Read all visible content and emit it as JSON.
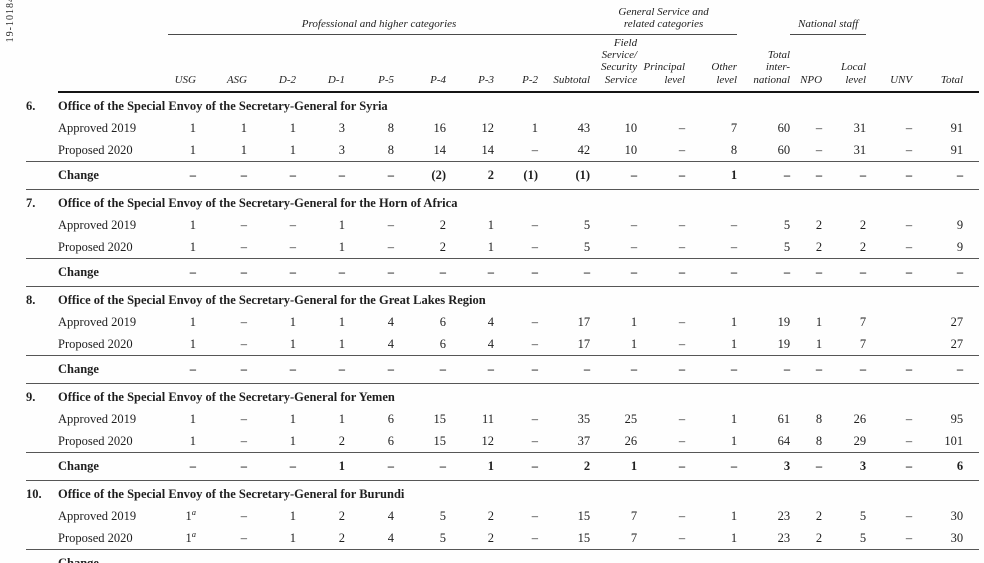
{
  "page": {
    "document_number": "19-10184"
  },
  "table": {
    "group_cells": [
      {
        "label": "",
        "span": 2,
        "ruled": false
      },
      {
        "label": "Professional and higher categories",
        "span": 9,
        "ruled": true
      },
      {
        "label": "General Service and\nrelated categories",
        "span": 3,
        "ruled": true
      },
      {
        "label": "",
        "span": 1,
        "ruled": false
      },
      {
        "label": "National staff",
        "span": 2,
        "ruled": true
      },
      {
        "label": "",
        "span": 2,
        "ruled": false
      }
    ],
    "columns": [
      {
        "id": "usg",
        "lines": [
          "USG"
        ]
      },
      {
        "id": "asg",
        "lines": [
          "ASG"
        ]
      },
      {
        "id": "d-2",
        "lines": [
          "D-2"
        ]
      },
      {
        "id": "d-1",
        "lines": [
          "D-1"
        ]
      },
      {
        "id": "p-5",
        "lines": [
          "P-5"
        ]
      },
      {
        "id": "p-4",
        "lines": [
          "P-4"
        ]
      },
      {
        "id": "p-3",
        "lines": [
          "P-3"
        ]
      },
      {
        "id": "p-2",
        "lines": [
          "P-2"
        ]
      },
      {
        "id": "subtotal",
        "lines": [
          "Subtotal"
        ]
      },
      {
        "id": "field-service-security-service",
        "lines": [
          "Field",
          "Service/",
          "Security",
          "Service"
        ]
      },
      {
        "id": "principal-level",
        "lines": [
          "Principal",
          "level"
        ]
      },
      {
        "id": "other-level",
        "lines": [
          "Other",
          "level"
        ]
      },
      {
        "id": "total-international",
        "lines": [
          "Total",
          "inter-",
          "national"
        ]
      },
      {
        "id": "npo",
        "lines": [
          "NPO"
        ]
      },
      {
        "id": "local-level",
        "lines": [
          "Local",
          "level"
        ]
      },
      {
        "id": "unv",
        "lines": [
          "UNV"
        ]
      },
      {
        "id": "total",
        "lines": [
          "Total"
        ]
      }
    ],
    "sections": [
      {
        "number": "6.",
        "title": "Office of the Special Envoy of the Secretary-General for Syria",
        "rows": [
          {
            "label": "Approved 2019",
            "values": [
              "1",
              "1",
              "1",
              "3",
              "8",
              "16",
              "12",
              "1",
              "43",
              "10",
              "–",
              "7",
              "60",
              "–",
              "31",
              "–",
              "91"
            ]
          },
          {
            "label": "Proposed 2020",
            "values": [
              "1",
              "1",
              "1",
              "3",
              "8",
              "14",
              "14",
              "–",
              "42",
              "10",
              "–",
              "8",
              "60",
              "–",
              "31",
              "–",
              "91"
            ]
          },
          {
            "label": "Change",
            "values": [
              "–",
              "–",
              "–",
              "–",
              "–",
              "(2)",
              "2",
              "(1)",
              "(1)",
              "–",
              "–",
              "1",
              "–",
              "–",
              "–",
              "–",
              "–"
            ]
          }
        ]
      },
      {
        "number": "7.",
        "title": "Office of the Special Envoy of the Secretary-General for the Horn of Africa",
        "rows": [
          {
            "label": "Approved 2019",
            "values": [
              "1",
              "–",
              "–",
              "1",
              "–",
              "2",
              "1",
              "–",
              "5",
              "–",
              "–",
              "–",
              "5",
              "2",
              "2",
              "–",
              "9"
            ]
          },
          {
            "label": "Proposed 2020",
            "values": [
              "1",
              "–",
              "–",
              "1",
              "–",
              "2",
              "1",
              "–",
              "5",
              "–",
              "–",
              "–",
              "5",
              "2",
              "2",
              "–",
              "9"
            ]
          },
          {
            "label": "Change",
            "values": [
              "–",
              "–",
              "–",
              "–",
              "–",
              "–",
              "–",
              "–",
              "–",
              "–",
              "–",
              "–",
              "–",
              "–",
              "–",
              "–",
              "–"
            ]
          }
        ]
      },
      {
        "number": "8.",
        "title": "Office of the Special Envoy of the Secretary-General for the Great Lakes Region",
        "rows": [
          {
            "label": "Approved 2019",
            "values": [
              "1",
              "–",
              "1",
              "1",
              "4",
              "6",
              "4",
              "–",
              "17",
              "1",
              "–",
              "1",
              "19",
              "1",
              "7",
              "",
              "27"
            ]
          },
          {
            "label": "Proposed 2020",
            "values": [
              "1",
              "–",
              "1",
              "1",
              "4",
              "6",
              "4",
              "–",
              "17",
              "1",
              "–",
              "1",
              "19",
              "1",
              "7",
              "",
              "27"
            ]
          },
          {
            "label": "Change",
            "values": [
              "–",
              "–",
              "–",
              "–",
              "–",
              "–",
              "–",
              "–",
              "–",
              "–",
              "–",
              "–",
              "–",
              "–",
              "–",
              "–",
              "–"
            ]
          }
        ]
      },
      {
        "number": "9.",
        "title": "Office of the Special Envoy of the Secretary-General for Yemen",
        "rows": [
          {
            "label": "Approved 2019",
            "values": [
              "1",
              "–",
              "1",
              "1",
              "6",
              "15",
              "11",
              "–",
              "35",
              "25",
              "–",
              "1",
              "61",
              "8",
              "26",
              "–",
              "95"
            ]
          },
          {
            "label": "Proposed 2020",
            "values": [
              "1",
              "–",
              "1",
              "2",
              "6",
              "15",
              "12",
              "–",
              "37",
              "26",
              "–",
              "1",
              "64",
              "8",
              "29",
              "–",
              "101"
            ]
          },
          {
            "label": "Change",
            "values": [
              "–",
              "–",
              "–",
              "1",
              "–",
              "–",
              "1",
              "–",
              "2",
              "1",
              "–",
              "–",
              "3",
              "–",
              "3",
              "–",
              "6"
            ]
          }
        ]
      },
      {
        "number": "10.",
        "title": "Office of the Special Envoy of the Secretary-General for Burundi",
        "rows": [
          {
            "label": "Approved 2019",
            "values": [
              "1^a",
              "–",
              "1",
              "2",
              "4",
              "5",
              "2",
              "–",
              "15",
              "7",
              "–",
              "1",
              "23",
              "2",
              "5",
              "–",
              "30"
            ]
          },
          {
            "label": "Proposed 2020",
            "values": [
              "1^a",
              "–",
              "1",
              "2",
              "4",
              "5",
              "2",
              "–",
              "15",
              "7",
              "–",
              "1",
              "23",
              "2",
              "5",
              "–",
              "30"
            ]
          },
          {
            "label": "Change",
            "values": [
              "–",
              "–",
              "–",
              "–",
              "–",
              "–",
              "–",
              "–",
              "–",
              "–",
              "–",
              "–",
              "–",
              "–",
              "–",
              "–",
              "–"
            ]
          }
        ]
      }
    ]
  }
}
